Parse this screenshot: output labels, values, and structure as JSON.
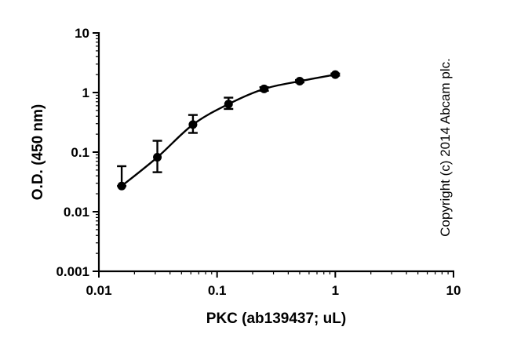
{
  "chart_data": {
    "type": "line",
    "title": "",
    "xlabel": "PKC (ab139437; uL)",
    "ylabel": "O.D. (450 nm)",
    "x_scale": "log",
    "y_scale": "log",
    "xlim": [
      0.01,
      10
    ],
    "ylim": [
      0.001,
      10
    ],
    "x_ticks": [
      0.01,
      0.1,
      1,
      10
    ],
    "x_tick_labels": [
      "0.01",
      "0.1",
      "1",
      "10"
    ],
    "y_ticks": [
      0.001,
      0.01,
      0.1,
      1,
      10
    ],
    "y_tick_labels": [
      "0.001",
      "0.01",
      "0.1",
      "1",
      "10"
    ],
    "grid": false,
    "legend": "none",
    "series": [
      {
        "x": [
          0.0156,
          0.03125,
          0.0625,
          0.125,
          0.25,
          0.5,
          1
        ],
        "y": [
          0.027,
          0.082,
          0.29,
          0.64,
          1.15,
          1.55,
          2.0
        ],
        "error_low": [
          0.027,
          0.046,
          0.21,
          0.53,
          1.07,
          1.48,
          1.92
        ],
        "error_high": [
          0.058,
          0.155,
          0.42,
          0.82,
          1.23,
          1.62,
          2.08
        ],
        "color": "#000000"
      }
    ],
    "annotation": "Copyright (c) 2014 Abcam plc."
  }
}
